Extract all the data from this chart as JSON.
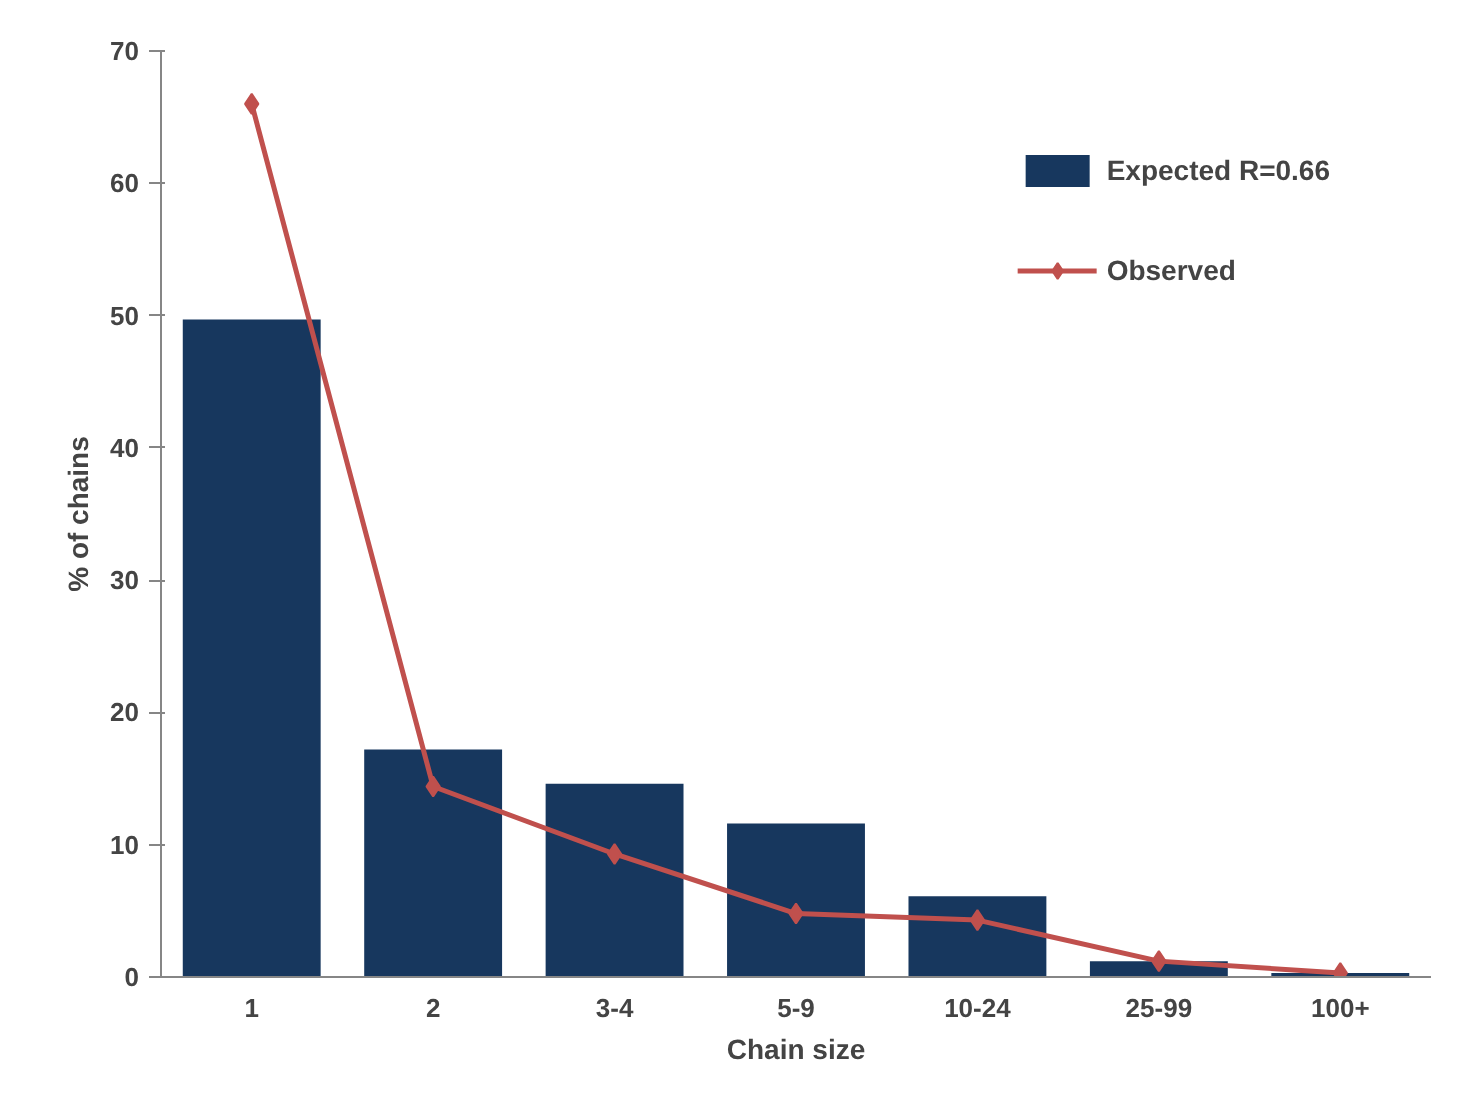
{
  "chart_data": {
    "type": "bar",
    "xlabel": "Chain size",
    "ylabel": "% of chains",
    "categories": [
      "1",
      "2",
      "3-4",
      "5-9",
      "10-24",
      "25-99",
      "100+"
    ],
    "series": [
      {
        "name": "Expected R=0.66",
        "color": "#17375e",
        "values": [
          49.7,
          17.2,
          14.6,
          11.6,
          6.1,
          1.2,
          0.3
        ]
      },
      {
        "name": "Observed",
        "type": "line",
        "color": "#c0504d",
        "marker": "diamond",
        "values": [
          66.0,
          14.4,
          9.3,
          4.8,
          4.3,
          1.2,
          0.3
        ]
      }
    ],
    "ylim": [
      0,
      70
    ],
    "yticks": [
      0,
      10,
      20,
      30,
      40,
      50,
      60,
      70
    ],
    "grid": false,
    "legend": "top right"
  }
}
